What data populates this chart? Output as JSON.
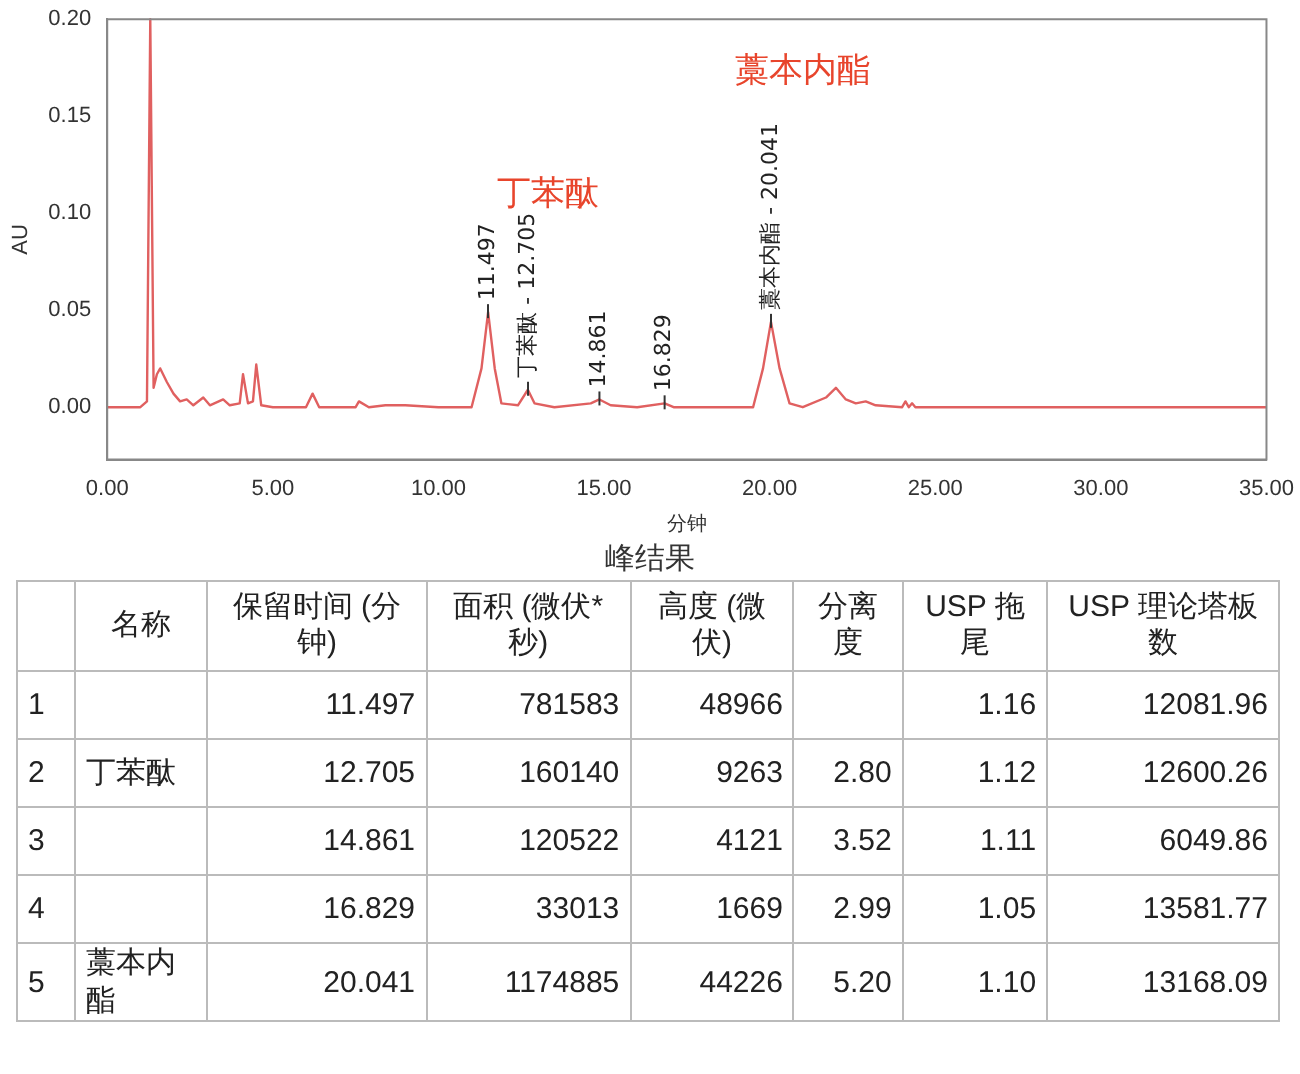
{
  "chart_data": {
    "type": "line",
    "xlabel": "分钟",
    "ylabel": "AU",
    "legend": false,
    "grid": false,
    "marker": "none",
    "line_style": "solid",
    "xlim": [
      0,
      35
    ],
    "ylim": [
      -0.027,
      0.2
    ],
    "xticks": [
      {
        "value": 0,
        "label": "0.00"
      },
      {
        "value": 5,
        "label": "5.00"
      },
      {
        "value": 10,
        "label": "10.00"
      },
      {
        "value": 15,
        "label": "15.00"
      },
      {
        "value": 20,
        "label": "20.00"
      },
      {
        "value": 25,
        "label": "25.00"
      },
      {
        "value": 30,
        "label": "30.00"
      },
      {
        "value": 35,
        "label": "35.00"
      }
    ],
    "yticks": [
      {
        "value": 0,
        "label": "0.00"
      },
      {
        "value": 0.05,
        "label": "0.05"
      },
      {
        "value": 0.1,
        "label": "0.10"
      },
      {
        "value": 0.15,
        "label": "0.15"
      },
      {
        "value": 0.2,
        "label": "0.20"
      }
    ],
    "series": [
      {
        "color": "#e06060",
        "x": [
          0,
          1.0,
          1.2,
          1.3,
          1.4,
          1.5,
          1.6,
          1.8,
          2.0,
          2.2,
          2.4,
          2.6,
          2.9,
          3.1,
          3.5,
          3.7,
          4.0,
          4.1,
          4.25,
          4.4,
          4.5,
          4.65,
          5,
          6.0,
          6.2,
          6.4,
          7.5,
          7.6,
          7.9,
          8.4,
          9,
          10,
          11.0,
          11.3,
          11.5,
          11.7,
          11.9,
          12.4,
          12.7,
          12.9,
          13.5,
          14.6,
          14.86,
          15.2,
          16,
          16.83,
          17.1,
          19.5,
          19.8,
          20.04,
          20.3,
          20.6,
          21,
          21.7,
          22,
          22.3,
          22.6,
          22.9,
          23.2,
          24,
          24.1,
          24.2,
          24.3,
          24.4,
          35
        ],
        "values": [
          0,
          0,
          0.003,
          0.2,
          0.01,
          0.017,
          0.02,
          0.013,
          0.007,
          0.003,
          0.004,
          0.001,
          0.005,
          0.001,
          0.004,
          0.001,
          0.002,
          0.017,
          0.002,
          0.003,
          0.022,
          0.001,
          0,
          0,
          0.007,
          0,
          0,
          0.003,
          0,
          0.001,
          0.001,
          0,
          0,
          0.02,
          0.049,
          0.02,
          0.002,
          0.001,
          0.009,
          0.002,
          0,
          0.002,
          0.004,
          0.001,
          0,
          0.002,
          0,
          0,
          0.02,
          0.044,
          0.02,
          0.002,
          0,
          0.005,
          0.01,
          0.004,
          0.002,
          0.003,
          0.001,
          0,
          0.003,
          0,
          0.002,
          0,
          0
        ]
      }
    ],
    "annotations": [
      {
        "text": "11.497",
        "x": 11.497,
        "y": 0.049
      },
      {
        "text": "丁苯酞 - 12.705",
        "x": 12.705,
        "y": 0.009
      },
      {
        "text": "14.861",
        "x": 14.861,
        "y": 0.004
      },
      {
        "text": "16.829",
        "x": 16.829,
        "y": 0.002
      },
      {
        "text": "藁本内酯 - 20.041",
        "x": 20.041,
        "y": 0.044
      },
      "丁苯酞",
      "藁本内酯",
      "峰结果",
      null,
      "名称",
      "保留时间 (分钟)",
      "面积 (微伏*秒)",
      "高度 (微伏)",
      "分离度",
      "USP 拖尾",
      "USP 理论塔板数",
      "1",
      null,
      "11.497",
      "781583",
      "48966",
      null,
      "1.16",
      "12081.96",
      "2",
      "丁苯酞",
      "12.705",
      "160140",
      "9263",
      "2.80",
      "1.12",
      "12600.26",
      "3",
      null,
      "14.861",
      "120522",
      "4121",
      "3.52",
      "1.11",
      "6049.86",
      "4",
      null,
      "16.829",
      "33013",
      "1669",
      "2.99",
      "1.05",
      "13581.77",
      "5",
      "藁本内酯",
      "20.041",
      "1174885",
      "44226",
      "5.20",
      "1.10",
      "13168.09"
    ]
  }
}
